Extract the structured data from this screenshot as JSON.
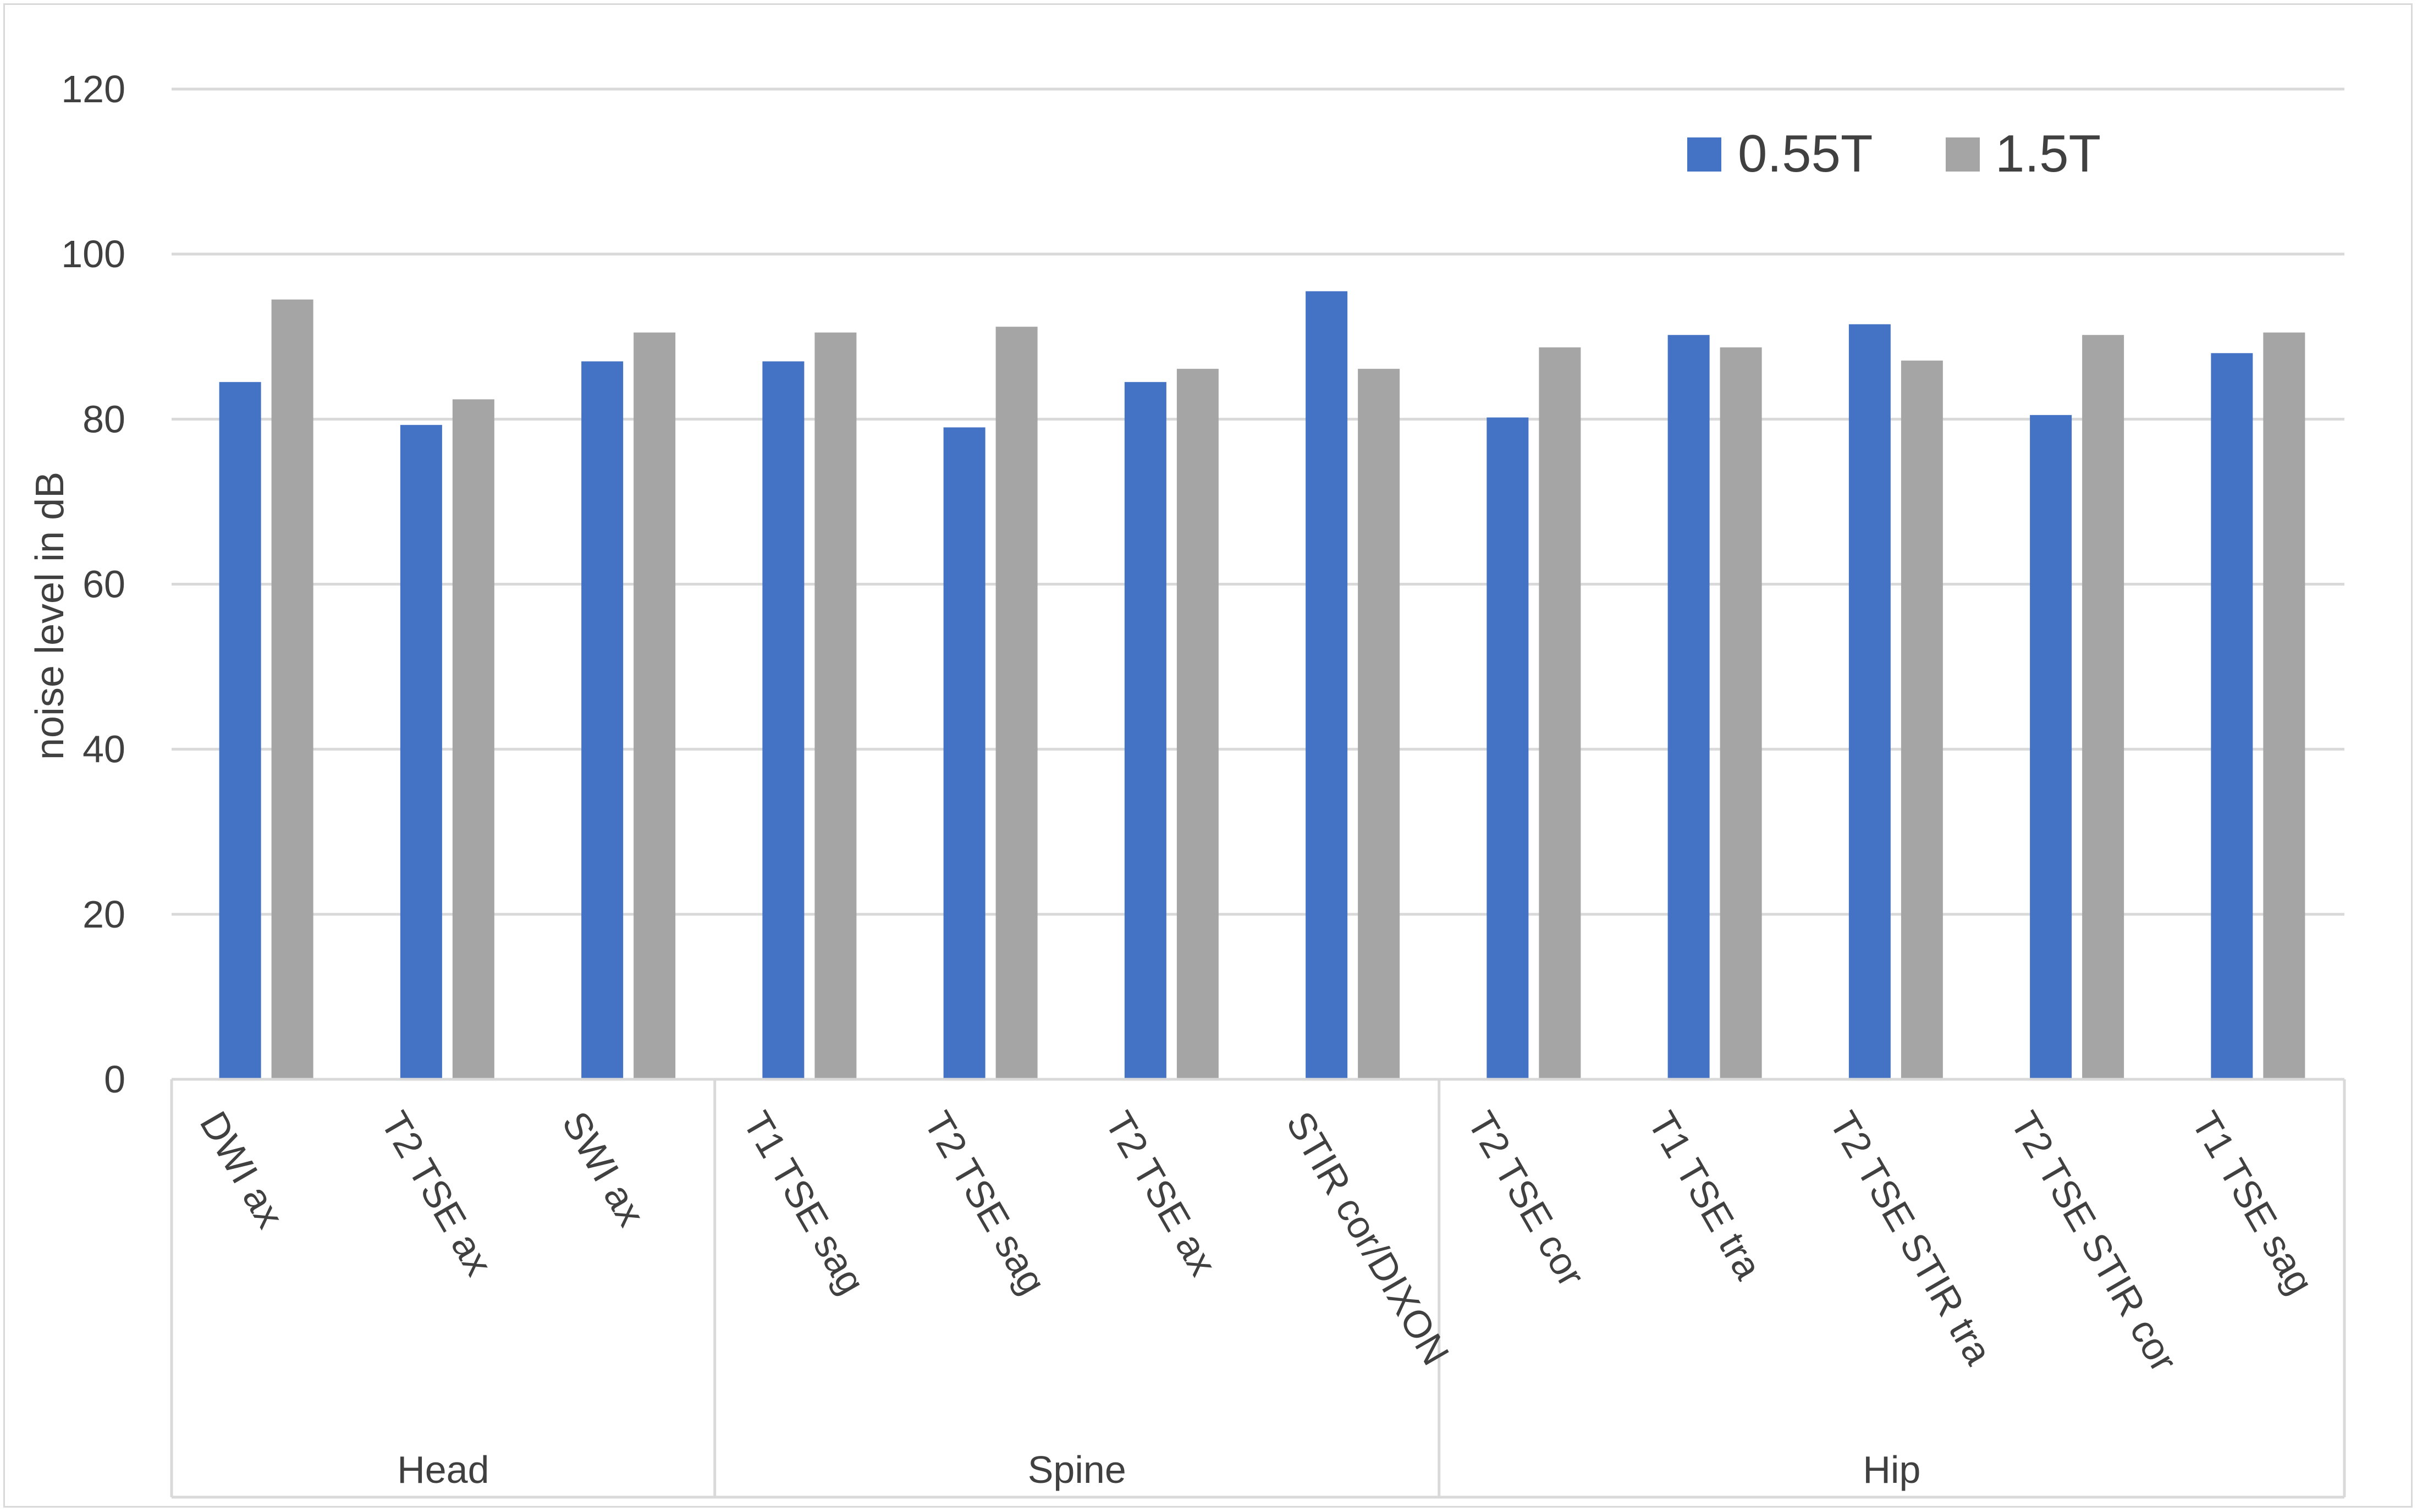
{
  "chart_data": {
    "type": "bar",
    "ylabel": "noise level in dB",
    "ylim": [
      0,
      120
    ],
    "yticks": [
      0,
      20,
      40,
      60,
      80,
      100,
      120
    ],
    "grid": true,
    "legend_position": "top-right",
    "categories": [
      "DWI ax",
      "T2 TSE ax",
      "SWI ax",
      "T1 TSE sag",
      "T2 TSE sag",
      "T2 TSE ax",
      "STIR cor/DIXON",
      "T2 TSE cor",
      "T1 TSE tra",
      "T2 TSE STIR tra",
      "T2 TSE STIR cor",
      "T1 TSE sag"
    ],
    "groups": [
      {
        "label": "Head",
        "start": 0,
        "end": 2
      },
      {
        "label": "Spine",
        "start": 3,
        "end": 6
      },
      {
        "label": "Hip",
        "start": 7,
        "end": 11
      }
    ],
    "series": [
      {
        "name": "0.55T",
        "color": "#4472c4",
        "values": [
          84.5,
          79.3,
          87.0,
          87.0,
          79.0,
          84.5,
          95.5,
          80.2,
          90.2,
          91.5,
          80.5,
          88.0
        ]
      },
      {
        "name": "1.5T",
        "color": "#a5a5a5",
        "values": [
          94.5,
          82.4,
          90.5,
          90.5,
          91.2,
          86.1,
          86.1,
          88.7,
          88.7,
          87.1,
          90.2,
          90.5
        ]
      }
    ]
  }
}
